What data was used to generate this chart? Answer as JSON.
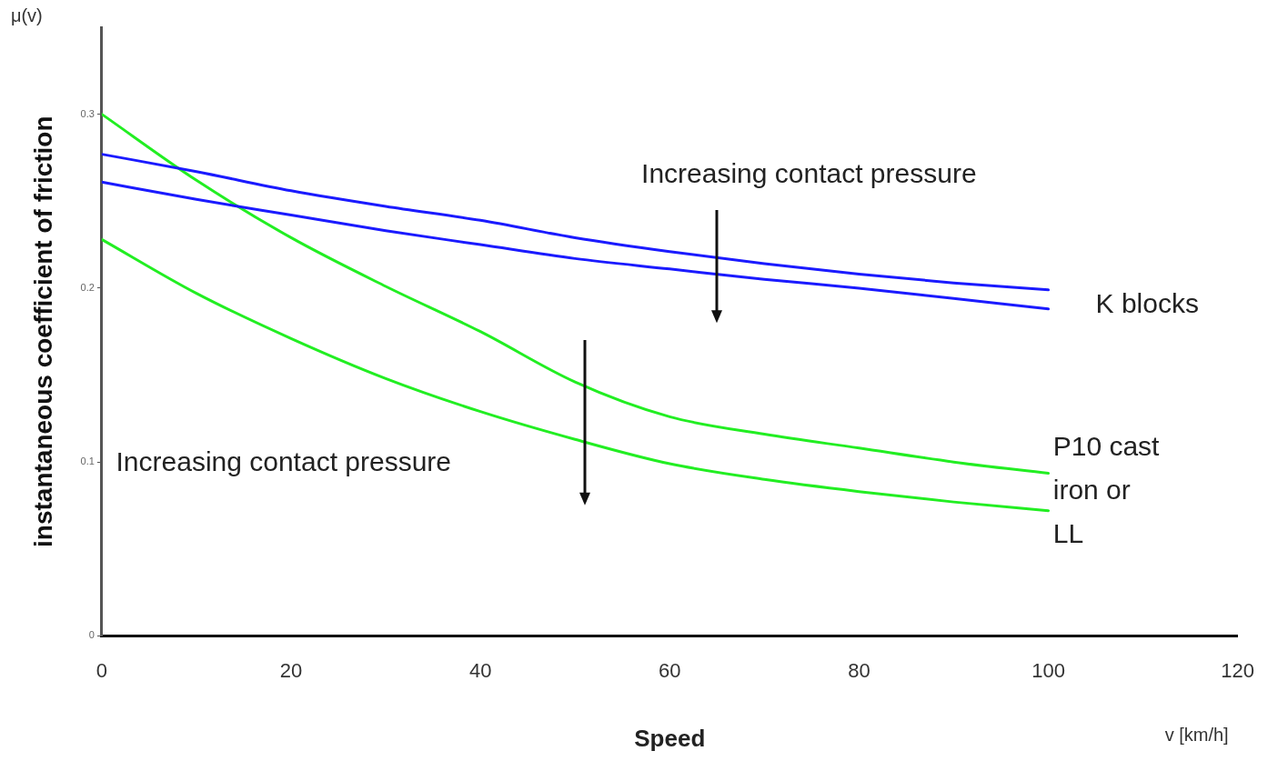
{
  "chart_data": {
    "type": "line",
    "xlabel": "Speed",
    "ylabel": "instantaneous coefficient of friction",
    "x": [
      0,
      10,
      20,
      30,
      40,
      50,
      60,
      70,
      80,
      90,
      100
    ],
    "series": [
      {
        "color": "#1a1aff",
        "values": [
          0.277,
          0.267,
          0.256,
          0.247,
          0.239,
          0.229,
          0.221,
          0.214,
          0.208,
          0.203,
          0.199
        ]
      },
      {
        "color": "#1a1aff",
        "values": [
          0.261,
          0.251,
          0.242,
          0.233,
          0.225,
          0.217,
          0.211,
          0.205,
          0.2,
          0.194,
          0.188
        ]
      },
      {
        "color": "#22ee22",
        "values": [
          0.3,
          0.262,
          0.229,
          0.201,
          0.175,
          0.146,
          0.126,
          0.116,
          0.108,
          0.1,
          0.0935
        ]
      },
      {
        "color": "#22ee22",
        "values": [
          0.228,
          0.197,
          0.171,
          0.148,
          0.129,
          0.113,
          0.099,
          0.09,
          0.083,
          0.077,
          0.072
        ]
      }
    ],
    "xlim": [
      0,
      120
    ],
    "xticks": [
      0,
      20,
      40,
      60,
      80,
      100,
      120
    ],
    "ylim": [
      0,
      0.35
    ],
    "yticks": [
      0,
      0.1,
      0.2,
      0.3
    ],
    "grid": false,
    "legend": false,
    "marker": "none",
    "line_style": "solid",
    "annotations": [
      "μ(v)",
      "v [km/h]",
      "Increasing contact pressure",
      "Increasing contact pressure",
      "K blocks",
      "P10 cast\niron or\nLL"
    ]
  }
}
